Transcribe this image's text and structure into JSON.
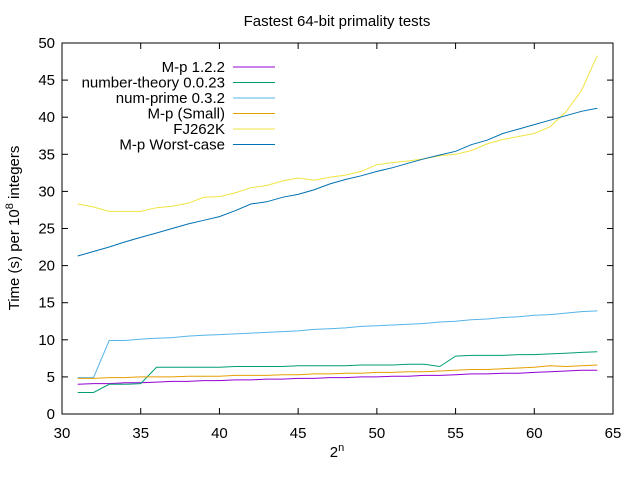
{
  "chart_data": {
    "type": "line",
    "title": "Fastest 64-bit primality tests",
    "xlabel_base": "2",
    "xlabel_sup": "n",
    "ylabel_prefix": "Time (s) per 10",
    "ylabel_sup": "8",
    "ylabel_suffix": " integers",
    "xlim": [
      30,
      65
    ],
    "ylim": [
      0,
      50
    ],
    "xticks": [
      30,
      35,
      40,
      45,
      50,
      55,
      60,
      65
    ],
    "yticks": [
      0,
      5,
      10,
      15,
      20,
      25,
      30,
      35,
      40,
      45,
      50
    ],
    "grid": false,
    "legend_position": "top-left",
    "x": [
      31,
      32,
      33,
      34,
      35,
      36,
      37,
      38,
      39,
      40,
      41,
      42,
      43,
      44,
      45,
      46,
      47,
      48,
      49,
      50,
      51,
      52,
      53,
      54,
      55,
      56,
      57,
      58,
      59,
      60,
      61,
      62,
      63,
      64
    ],
    "series": [
      {
        "name": "M-p 1.2.2",
        "color": "#9400d3",
        "values": [
          4.0,
          4.1,
          4.1,
          4.2,
          4.2,
          4.3,
          4.4,
          4.4,
          4.5,
          4.5,
          4.6,
          4.6,
          4.7,
          4.7,
          4.8,
          4.8,
          4.9,
          4.9,
          5.0,
          5.0,
          5.1,
          5.1,
          5.2,
          5.2,
          5.3,
          5.4,
          5.4,
          5.5,
          5.5,
          5.6,
          5.7,
          5.8,
          5.9,
          5.9
        ]
      },
      {
        "name": "number-theory 0.0.23",
        "color": "#009e73",
        "values": [
          2.9,
          2.9,
          4.0,
          4.0,
          4.1,
          6.3,
          6.3,
          6.3,
          6.3,
          6.3,
          6.4,
          6.4,
          6.4,
          6.4,
          6.5,
          6.5,
          6.5,
          6.5,
          6.6,
          6.6,
          6.6,
          6.7,
          6.7,
          6.4,
          7.8,
          7.9,
          7.9,
          7.9,
          8.0,
          8.0,
          8.1,
          8.2,
          8.3,
          8.4
        ]
      },
      {
        "name": "num-prime 0.3.2",
        "color": "#56b4e9",
        "values": [
          4.9,
          4.9,
          9.9,
          9.9,
          10.1,
          10.2,
          10.3,
          10.5,
          10.6,
          10.7,
          10.8,
          10.9,
          11.0,
          11.1,
          11.2,
          11.4,
          11.5,
          11.6,
          11.8,
          11.9,
          12.0,
          12.1,
          12.2,
          12.4,
          12.5,
          12.7,
          12.8,
          13.0,
          13.1,
          13.3,
          13.4,
          13.6,
          13.8,
          13.9
        ]
      },
      {
        "name": "M-p (Small)",
        "color": "#e69f00",
        "values": [
          4.8,
          4.8,
          4.9,
          4.9,
          5.0,
          5.0,
          5.0,
          5.1,
          5.1,
          5.1,
          5.2,
          5.2,
          5.2,
          5.3,
          5.3,
          5.4,
          5.4,
          5.5,
          5.5,
          5.6,
          5.6,
          5.7,
          5.7,
          5.8,
          5.9,
          6.0,
          6.0,
          6.1,
          6.2,
          6.3,
          6.5,
          6.4,
          6.5,
          6.6
        ]
      },
      {
        "name": "FJ262K",
        "color": "#f0e442",
        "values": [
          28.3,
          27.9,
          27.3,
          27.3,
          27.3,
          27.8,
          28.0,
          28.4,
          29.2,
          29.3,
          29.8,
          30.5,
          30.8,
          31.4,
          31.8,
          31.5,
          31.9,
          32.2,
          32.7,
          33.6,
          33.9,
          34.1,
          34.4,
          34.8,
          35.0,
          35.5,
          36.4,
          37.0,
          37.4,
          37.8,
          38.7,
          40.7,
          43.6,
          48.3
        ]
      },
      {
        "name": "M-p Worst-case",
        "color": "#0072b2",
        "values": [
          21.3,
          21.9,
          22.5,
          23.2,
          23.8,
          24.4,
          25.0,
          25.6,
          26.1,
          26.6,
          27.4,
          28.3,
          28.6,
          29.2,
          29.6,
          30.2,
          31.0,
          31.6,
          32.1,
          32.7,
          33.2,
          33.8,
          34.4,
          34.9,
          35.4,
          36.3,
          36.9,
          37.8,
          38.4,
          39.0,
          39.6,
          40.2,
          40.8,
          41.2
        ]
      }
    ]
  }
}
